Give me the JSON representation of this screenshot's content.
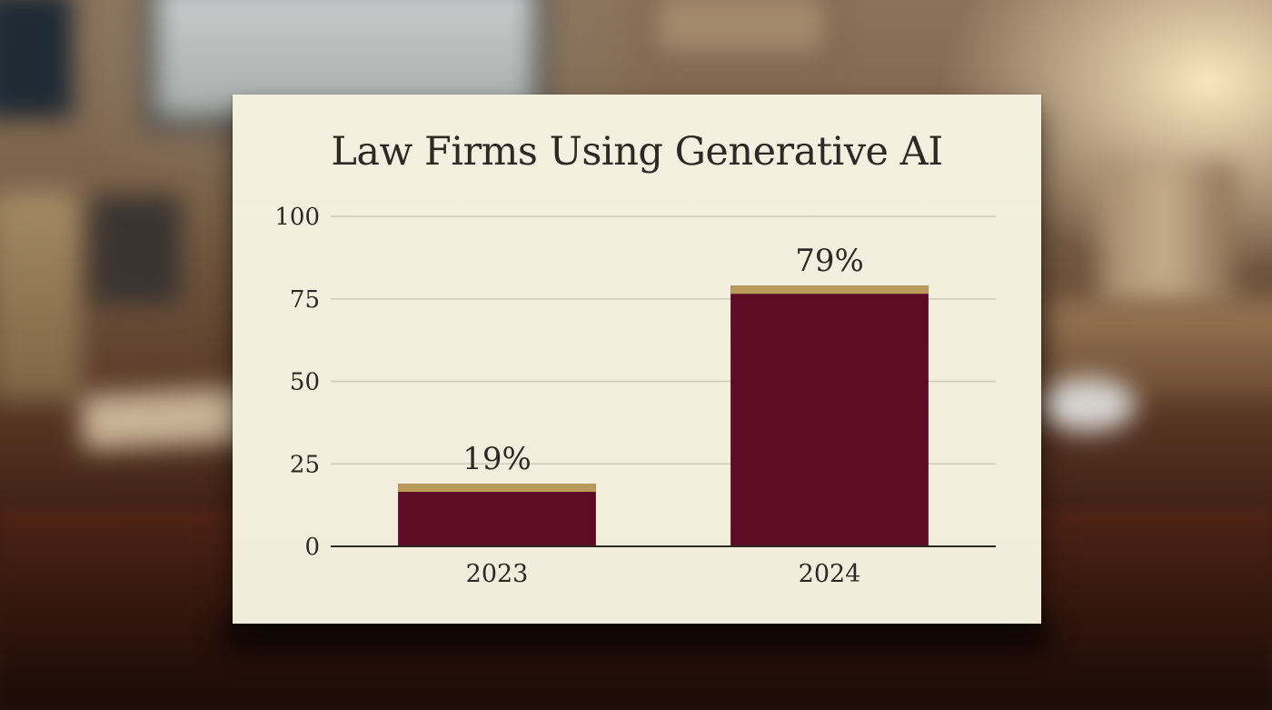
{
  "chart_data": {
    "type": "bar",
    "title": "Law Firms Using Generative AI",
    "categories": [
      "2023",
      "2024"
    ],
    "values": [
      19,
      79
    ],
    "data_labels": [
      "19%",
      "79%"
    ],
    "ylim": [
      0,
      100
    ],
    "yticks": [
      0,
      25,
      50,
      75,
      100
    ],
    "ytick_labels": [
      "0",
      "25",
      "50",
      "75",
      "100"
    ],
    "grid": true,
    "colors": {
      "bar": "#5e0b26",
      "bar_cap": "#b99a5b",
      "grid": "#cfcbbd",
      "axis": "#2d2a26"
    }
  }
}
